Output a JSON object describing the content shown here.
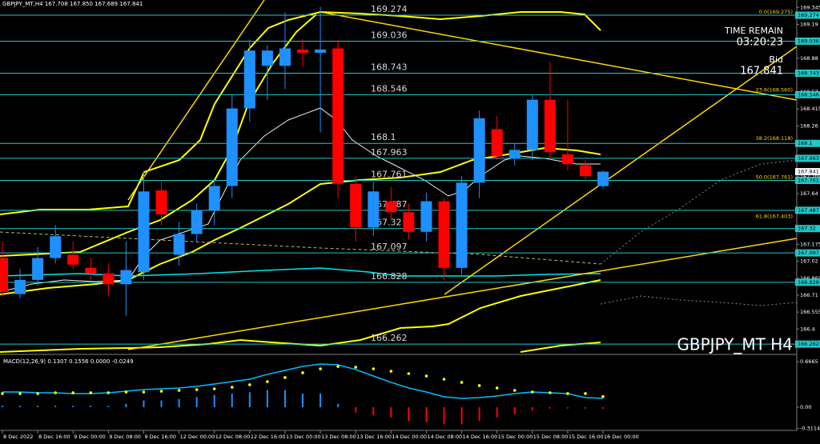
{
  "chart_data": {
    "type": "candlestick",
    "title": "GBPJPY_MT,H4 167.708 167.850 167.689 167.841",
    "watermark": "GBPJPY_MT H4",
    "time_remain_label": "TIME REMAIN",
    "time_remain": "03:20:23",
    "bid_label": "Bid",
    "bid": 167.841,
    "categories": [
      "8 Dec 2022",
      null,
      "8 Dec 16:00",
      null,
      "9 Dec 00:00",
      null,
      "9 Dec 08:00",
      null,
      "9 Dec 16:00",
      null,
      "12 Dec 00:00",
      null,
      "12 Dec 08:00",
      null,
      "12 Dec 16:00",
      null,
      "13 Dec 00:00",
      null,
      "13 Dec 08:00",
      null,
      "13 Dec 16:00",
      null,
      "14 Dec 00:00",
      null,
      "14 Dec 08:00",
      null,
      "14 Dec 16:00",
      null,
      "15 Dec 00:00",
      null,
      "15 Dec 08:00",
      null,
      "15 Dec 16:00",
      null,
      "16 Dec 00:00"
    ],
    "open": [
      167.05,
      166.72,
      166.85,
      167.05,
      167.08,
      166.96,
      166.91,
      166.81,
      166.92,
      167.67,
      167.08,
      167.27,
      167.49,
      167.71,
      168.42,
      168.81,
      168.81,
      168.96,
      168.93,
      168.97,
      167.73,
      167.33,
      167.57,
      167.47,
      167.29,
      167.57,
      166.96,
      167.74,
      168.23,
      167.96,
      168.04,
      168.5,
      168.0,
      167.9,
      167.708
    ],
    "high": [
      167.2,
      166.95,
      167.15,
      167.35,
      167.2,
      167.05,
      167.0,
      167.2,
      167.85,
      167.75,
      167.38,
      167.55,
      167.75,
      168.55,
      169.05,
      169.0,
      169.3,
      169.05,
      169.35,
      169.05,
      167.8,
      167.75,
      167.7,
      167.55,
      167.65,
      167.6,
      167.8,
      168.4,
      168.35,
      168.1,
      168.55,
      168.85,
      168.5,
      167.95,
      167.85
    ],
    "low": [
      166.7,
      166.68,
      166.8,
      167.0,
      166.95,
      166.85,
      166.7,
      166.52,
      166.85,
      167.35,
      166.98,
      167.2,
      167.35,
      167.6,
      168.3,
      168.5,
      168.6,
      168.8,
      168.2,
      167.6,
      167.2,
      167.25,
      167.4,
      167.22,
      167.2,
      166.85,
      166.9,
      167.6,
      167.95,
      167.9,
      167.95,
      167.95,
      167.85,
      167.75,
      167.689
    ],
    "close": [
      166.74,
      166.85,
      167.05,
      167.25,
      166.99,
      166.91,
      166.81,
      166.94,
      167.66,
      167.45,
      167.27,
      167.49,
      167.71,
      168.42,
      168.95,
      168.95,
      168.97,
      168.93,
      168.96,
      167.73,
      167.33,
      167.66,
      167.47,
      167.29,
      167.57,
      166.96,
      167.74,
      168.33,
      167.98,
      168.04,
      168.5,
      168.02,
      167.91,
      167.8,
      167.841
    ],
    "up_color": "#1e90ff",
    "down_color": "#ff0000",
    "ylim": [
      166.175,
      169.413
    ],
    "yticks": [
      169.345,
      169.19,
      169.035,
      168.88,
      168.725,
      168.57,
      168.415,
      168.26,
      168.105,
      167.95,
      167.795,
      167.64,
      167.485,
      167.33,
      167.175,
      167.02,
      166.865,
      166.71,
      166.555,
      166.4,
      166.245
    ],
    "levels": [
      169.274,
      169.036,
      168.743,
      168.546,
      168.1,
      167.963,
      167.761,
      167.487,
      167.32,
      167.097,
      166.828,
      166.262
    ],
    "level_color": "#20c8c8",
    "fib_labels": [
      {
        "label": "0.0(169.275)",
        "value": 169.275
      },
      {
        "label": "23.6(168.560)",
        "value": 168.56
      },
      {
        "label": "38.2(168.118)",
        "value": 168.118
      },
      {
        "label": "50.0(167.761)",
        "value": 167.761
      },
      {
        "label": "61.8(167.403)",
        "value": 167.403
      }
    ],
    "macd": {
      "title": "MACD(12,26,9) 0.1307 0.1556 0.0000 -0.0249",
      "ylim": [
        -0.339,
        0.76
      ],
      "yticks": [
        0.6665,
        {
          "value": 0,
          "label": "0.00"
        },
        -0.3114
      ],
      "histogram": [
        0.02,
        0.02,
        0.02,
        0.02,
        0.02,
        0.02,
        0.02,
        0.05,
        0.1,
        0.1,
        0.12,
        0.15,
        0.18,
        0.2,
        0.22,
        0.25,
        0.25,
        0.2,
        0.2,
        0.05,
        -0.08,
        -0.12,
        -0.15,
        -0.2,
        -0.22,
        -0.25,
        -0.25,
        -0.2,
        -0.15,
        -0.1,
        -0.05,
        -0.02,
        -0.02,
        -0.02,
        -0.0249
      ],
      "main": [
        0.222,
        0.222,
        0.211,
        0.211,
        0.199,
        0.199,
        0.211,
        0.234,
        0.257,
        0.269,
        0.281,
        0.304,
        0.339,
        0.374,
        0.409,
        0.48,
        0.538,
        0.596,
        0.632,
        0.62,
        0.55,
        0.456,
        0.363,
        0.281,
        0.222,
        0.152,
        0.129,
        0.14,
        0.164,
        0.199,
        0.222,
        0.211,
        0.199,
        0.14,
        0.1307
      ],
      "signal": [
        0.199,
        0.199,
        0.199,
        0.211,
        0.211,
        0.211,
        0.211,
        0.222,
        0.222,
        0.234,
        0.246,
        0.257,
        0.269,
        0.292,
        0.328,
        0.374,
        0.433,
        0.503,
        0.561,
        0.596,
        0.585,
        0.561,
        0.526,
        0.491,
        0.456,
        0.409,
        0.363,
        0.316,
        0.281,
        0.246,
        0.222,
        0.211,
        0.199,
        0.199,
        0.1556
      ],
      "main_color": "#00bfff",
      "signal_color": "#ffff00",
      "up_color": "#1e90ff",
      "down_color": "#ff0000"
    }
  }
}
